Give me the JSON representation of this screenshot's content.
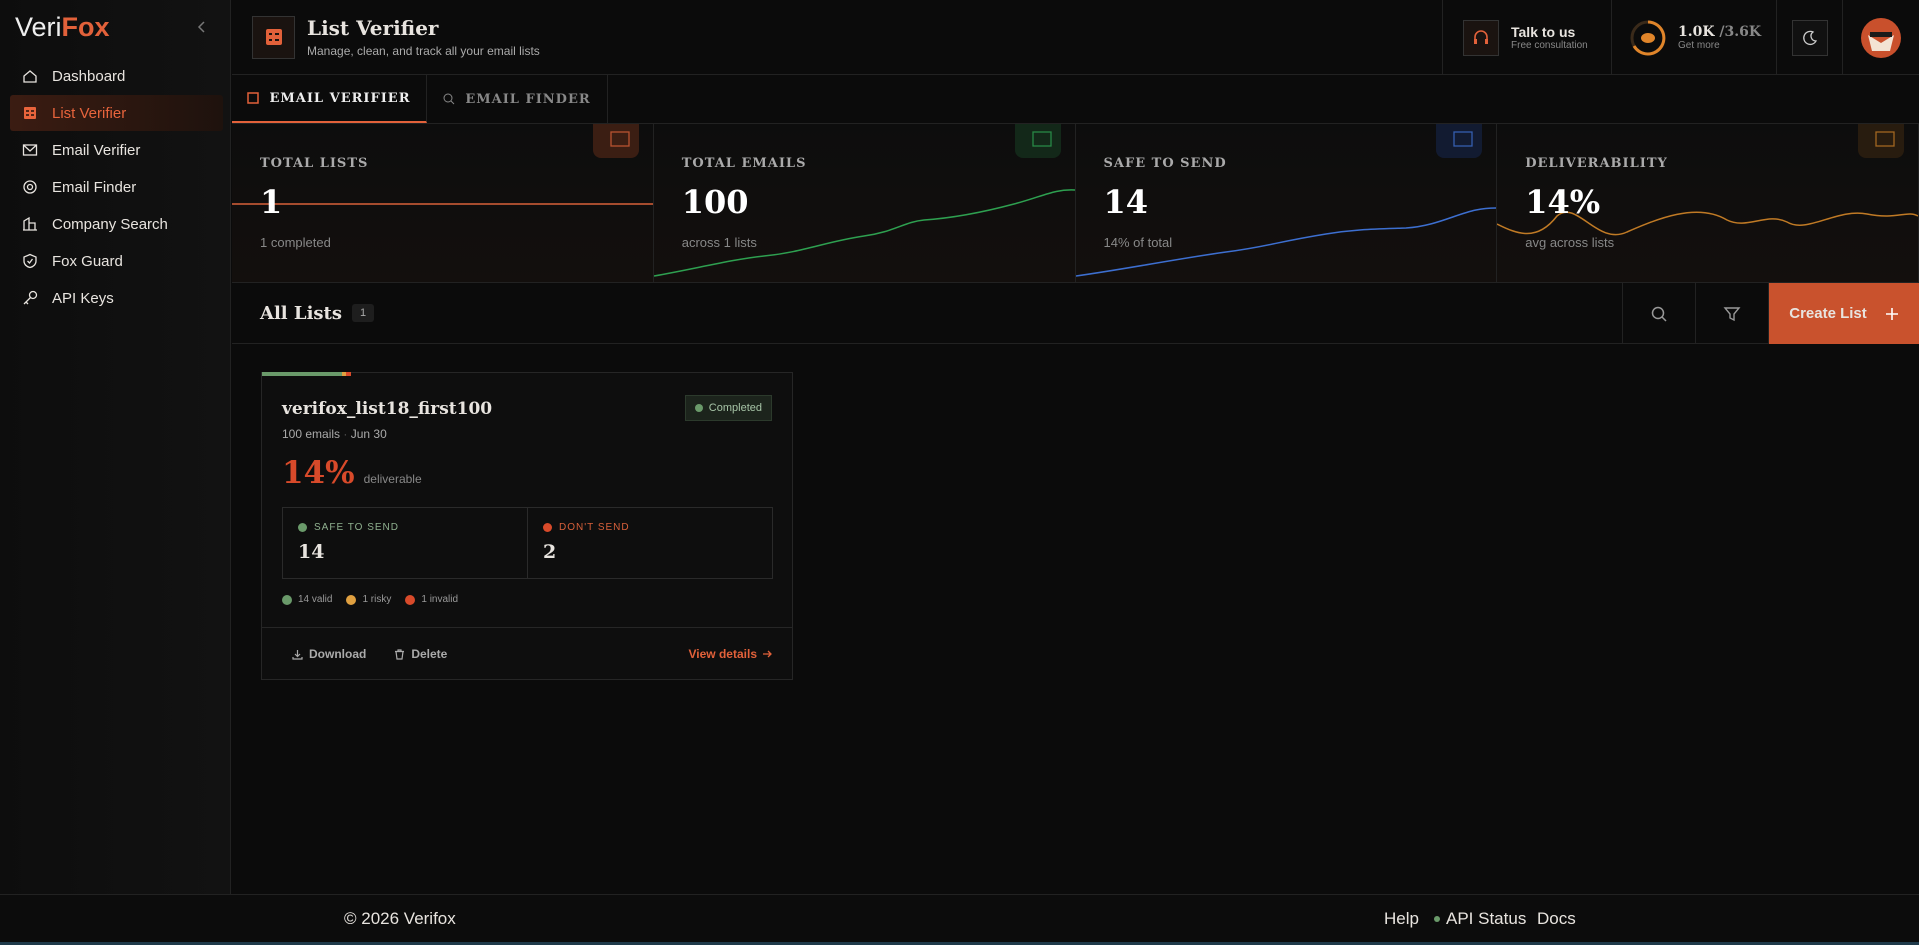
{
  "sidebar": {
    "logo": {
      "part1": "Veri",
      "part2": "Fox"
    },
    "nav": [
      "Dashboard",
      "List Verifier",
      "Email Verifier",
      "Email Finder",
      "Company Search",
      "Fox Guard",
      "API Keys"
    ]
  },
  "header": {
    "title": "List Verifier",
    "subtitle": "Manage, clean, and track all your email lists",
    "talk": {
      "title": "Talk to us",
      "subtitle": "Free consultation"
    },
    "credits": {
      "used": "1.0K",
      "total": "/3.6K",
      "action": "Get more"
    }
  },
  "tabs": [
    "EMAIL VERIFIER",
    "EMAIL FINDER"
  ],
  "stats": [
    {
      "label": "TOTAL LISTS",
      "value": "1",
      "sub": "1 completed"
    },
    {
      "label": "TOTAL EMAILS",
      "value": "100",
      "sub": "across 1 lists"
    },
    {
      "label": "SAFE TO SEND",
      "value": "14",
      "sub": "14% of total"
    },
    {
      "label": "DELIVERABILITY",
      "value": "14%",
      "sub": "avg across lists"
    }
  ],
  "lists": {
    "title": "All Lists",
    "count": "1",
    "create": "Create List"
  },
  "card": {
    "name": "verifox_list18_first100",
    "emails": "100 emails",
    "date": "Jun 30",
    "status": "Completed",
    "percent": "14%",
    "percent_label": "deliverable",
    "safe": {
      "label": "SAFE TO SEND",
      "value": "14"
    },
    "dont": {
      "label": "DON'T SEND",
      "value": "2"
    },
    "legend": [
      "14 valid",
      "1 risky",
      "1 invalid"
    ],
    "actions": [
      "Download",
      "Delete",
      "View details"
    ]
  },
  "footer": {
    "copyright": "© 2026 Verifox",
    "links": [
      "Help",
      "API Status",
      "Docs"
    ]
  }
}
